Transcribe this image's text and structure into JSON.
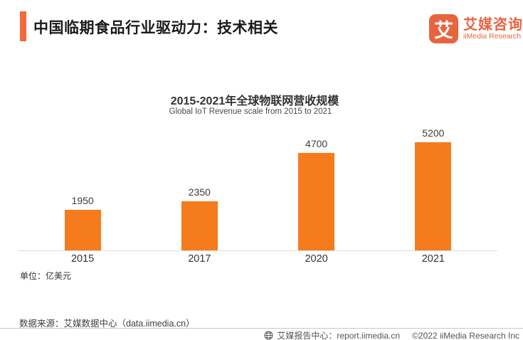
{
  "header": {
    "title": "中国临期食品行业驱动力：技术相关",
    "logo": {
      "glyph": "艾",
      "name_cn": "艾媒咨询",
      "name_en": "iiMedia Research"
    }
  },
  "chart": {
    "title": "2015-2021年全球物联网营收规模",
    "subtitle": "Global IoT Revenue scale from 2015 to 2021",
    "unit_note": "单位：亿美元"
  },
  "chart_data": {
    "type": "bar",
    "title": "2015-2021年全球物联网营收规模",
    "subtitle": "Global IoT Revenue scale from 2015 to 2021",
    "categories": [
      "2015",
      "2017",
      "2020",
      "2021"
    ],
    "values": [
      1950,
      2350,
      4700,
      5200
    ],
    "unit": "亿美元",
    "data_labels": true,
    "ylim": [
      0,
      5500
    ],
    "grid": false,
    "legend": false,
    "bar_color": "#F57B1D"
  },
  "footer": {
    "source": "数据来源：艾媒数据中心（data.iimedia.cn）",
    "report_center": "艾媒报告中心：report.iimedia.cn",
    "copyright": "©2022  iiMedia Research Inc"
  },
  "colors": {
    "bar": "#F57B1D",
    "brand": "#E8643E",
    "accent": "#F2693C",
    "axis": "#dcdcdc"
  }
}
